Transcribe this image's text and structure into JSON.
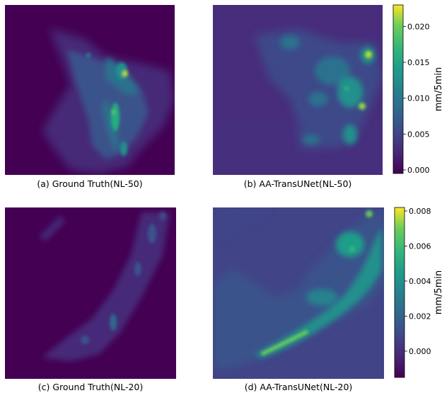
{
  "chart_data": [
    {
      "type": "heatmap",
      "caption": "(a) Ground Truth(NL-50)",
      "colormap": "viridis",
      "value_range": [
        -0.0005,
        0.023
      ],
      "colorbar": false
    },
    {
      "type": "heatmap",
      "caption": "(b) AA-TransUNet(NL-50)",
      "colormap": "viridis",
      "value_range": [
        -0.0005,
        0.023
      ],
      "colorbar": true,
      "colorbar_label": "mm/5min",
      "colorbar_ticks": [
        "0.000",
        "0.005",
        "0.010",
        "0.015",
        "0.020"
      ],
      "colorbar_tick_values": [
        0.0,
        0.005,
        0.01,
        0.015,
        0.02
      ]
    },
    {
      "type": "heatmap",
      "caption": "(c) Ground Truth(NL-20)",
      "colormap": "viridis",
      "value_range": [
        -0.0015,
        0.0082
      ],
      "colorbar": false
    },
    {
      "type": "heatmap",
      "caption": "(d) AA-TransUNet(NL-20)",
      "colormap": "viridis",
      "value_range": [
        -0.0015,
        0.0082
      ],
      "colorbar": true,
      "colorbar_label": "mm/5min",
      "colorbar_ticks": [
        "0.000",
        "0.002",
        "0.004",
        "0.006",
        "0.008"
      ],
      "colorbar_tick_values": [
        0.0,
        0.002,
        0.004,
        0.006,
        0.008
      ]
    }
  ],
  "colors": {
    "viridis_low": "#440154",
    "viridis_q1": "#3b528b",
    "viridis_mid": "#21918c",
    "viridis_q3": "#5ec962",
    "viridis_high": "#fde725",
    "background_deep": "#440154",
    "background_mid": "#472d7b"
  }
}
